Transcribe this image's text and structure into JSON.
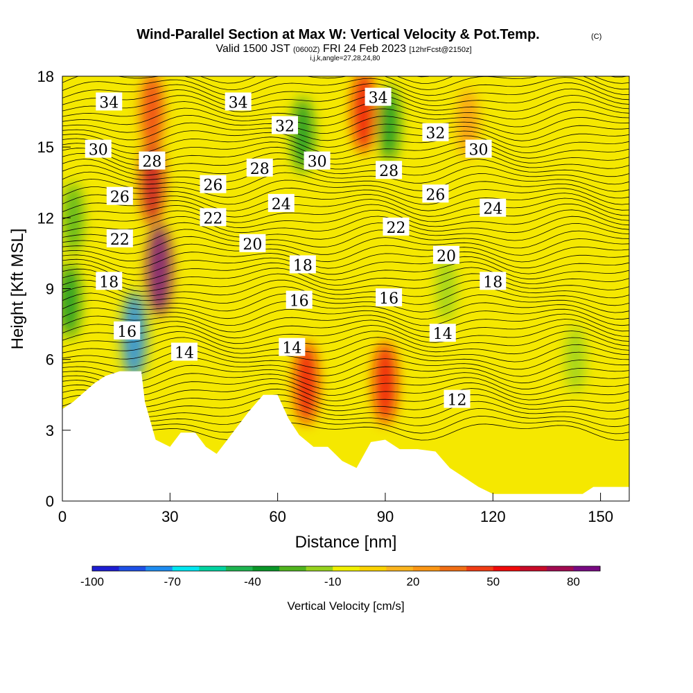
{
  "chart_data": {
    "type": "heatmap",
    "title": "Wind-Parallel Section at Max W: Vertical Velocity & Pot.Temp.",
    "title_mark": "(C)",
    "subtitle_parts": [
      "Valid 1500 JST",
      "(0600Z)",
      "FRI 24 Feb 2023",
      "[12hrFcst@2150z]"
    ],
    "subtitle2": "i,j,k,angle=27,28,24,80",
    "xlabel": "Distance [nm]",
    "ylabel": "Height [Kft MSL]",
    "xlim": [
      0,
      158
    ],
    "ylim": [
      0,
      18
    ],
    "xticks": [
      0,
      30,
      60,
      90,
      120,
      150
    ],
    "yticks": [
      0,
      3,
      6,
      9,
      12,
      15,
      18
    ],
    "colorbar": {
      "label": "Vertical Velocity [cm/s]",
      "tick_labels": [
        "-100",
        "-70",
        "-40",
        "-10",
        "20",
        "50",
        "80"
      ],
      "range": [
        -100,
        90
      ],
      "colors": [
        "#1e1ed2",
        "#1e50e6",
        "#1e8cf0",
        "#00e6f0",
        "#00d2a0",
        "#1eb450",
        "#0a9628",
        "#50b41e",
        "#96d21e",
        "#f0f000",
        "#fad200",
        "#fab41e",
        "#fa9614",
        "#f06e14",
        "#f03c14",
        "#f00a0a",
        "#c80a28",
        "#a00a50",
        "#780a82"
      ]
    },
    "terrain": [
      [
        0,
        3.9
      ],
      [
        3,
        4.2
      ],
      [
        6,
        4.6
      ],
      [
        9,
        5.0
      ],
      [
        12,
        5.3
      ],
      [
        16,
        5.5
      ],
      [
        22,
        5.5
      ],
      [
        23,
        4.2
      ],
      [
        26,
        2.6
      ],
      [
        30,
        2.3
      ],
      [
        33,
        2.9
      ],
      [
        37,
        2.9
      ],
      [
        40,
        2.3
      ],
      [
        43,
        2.0
      ],
      [
        46,
        2.6
      ],
      [
        49,
        3.2
      ],
      [
        52,
        3.8
      ],
      [
        56,
        4.5
      ],
      [
        60,
        4.5
      ],
      [
        63,
        3.5
      ],
      [
        66,
        2.8
      ],
      [
        70,
        2.3
      ],
      [
        74,
        2.3
      ],
      [
        78,
        1.7
      ],
      [
        82,
        1.4
      ],
      [
        86,
        2.5
      ],
      [
        90,
        2.6
      ],
      [
        94,
        2.2
      ],
      [
        99,
        2.2
      ],
      [
        104,
        2.1
      ],
      [
        108,
        1.4
      ],
      [
        112,
        1.0
      ],
      [
        116,
        0.6
      ],
      [
        120,
        0.3
      ],
      [
        145,
        0.3
      ],
      [
        148,
        0.6
      ],
      [
        158,
        0.6
      ]
    ],
    "velocity_features": [
      {
        "x": 25,
        "y": 13.5,
        "value": 60
      },
      {
        "x": 27,
        "y": 9.8,
        "value": 85
      },
      {
        "x": 25,
        "y": 16.5,
        "value": 45
      },
      {
        "x": 20,
        "y": 7.0,
        "value": -75
      },
      {
        "x": 3,
        "y": 12.0,
        "value": -25
      },
      {
        "x": 2,
        "y": 8.5,
        "value": -35
      },
      {
        "x": 68,
        "y": 5.0,
        "value": 55
      },
      {
        "x": 67,
        "y": 15.5,
        "value": -35
      },
      {
        "x": 84,
        "y": 16.5,
        "value": 55
      },
      {
        "x": 90,
        "y": 5.0,
        "value": 55
      },
      {
        "x": 91,
        "y": 16.0,
        "value": -35
      },
      {
        "x": 107,
        "y": 9.0,
        "value": -12
      },
      {
        "x": 113,
        "y": 16.0,
        "value": 20
      },
      {
        "x": 143,
        "y": 6.0,
        "value": -12
      }
    ],
    "pot_temp_labels": [
      {
        "text": "34",
        "x": 13,
        "y": 16.9
      },
      {
        "text": "34",
        "x": 49,
        "y": 16.9
      },
      {
        "text": "34",
        "x": 88,
        "y": 17.1
      },
      {
        "text": "32",
        "x": 62,
        "y": 15.9
      },
      {
        "text": "32",
        "x": 104,
        "y": 15.6
      },
      {
        "text": "30",
        "x": 10,
        "y": 14.9
      },
      {
        "text": "30",
        "x": 71,
        "y": 14.4
      },
      {
        "text": "30",
        "x": 116,
        "y": 14.9
      },
      {
        "text": "28",
        "x": 25,
        "y": 14.4
      },
      {
        "text": "28",
        "x": 55,
        "y": 14.1
      },
      {
        "text": "28",
        "x": 91,
        "y": 14.0
      },
      {
        "text": "26",
        "x": 16,
        "y": 12.9
      },
      {
        "text": "26",
        "x": 42,
        "y": 13.4
      },
      {
        "text": "26",
        "x": 104,
        "y": 13.0
      },
      {
        "text": "24",
        "x": 61,
        "y": 12.6
      },
      {
        "text": "24",
        "x": 120,
        "y": 12.4
      },
      {
        "text": "22",
        "x": 16,
        "y": 11.1
      },
      {
        "text": "22",
        "x": 42,
        "y": 12.0
      },
      {
        "text": "22",
        "x": 93,
        "y": 11.6
      },
      {
        "text": "20",
        "x": 53,
        "y": 10.9
      },
      {
        "text": "20",
        "x": 107,
        "y": 10.4
      },
      {
        "text": "18",
        "x": 13,
        "y": 9.3
      },
      {
        "text": "18",
        "x": 67,
        "y": 10.0
      },
      {
        "text": "18",
        "x": 120,
        "y": 9.3
      },
      {
        "text": "16",
        "x": 18,
        "y": 7.2
      },
      {
        "text": "16",
        "x": 66,
        "y": 8.5
      },
      {
        "text": "16",
        "x": 91,
        "y": 8.6
      },
      {
        "text": "14",
        "x": 34,
        "y": 6.3
      },
      {
        "text": "14",
        "x": 64,
        "y": 6.5
      },
      {
        "text": "14",
        "x": 106,
        "y": 7.1
      },
      {
        "text": "12",
        "x": 110,
        "y": 4.3
      }
    ]
  }
}
